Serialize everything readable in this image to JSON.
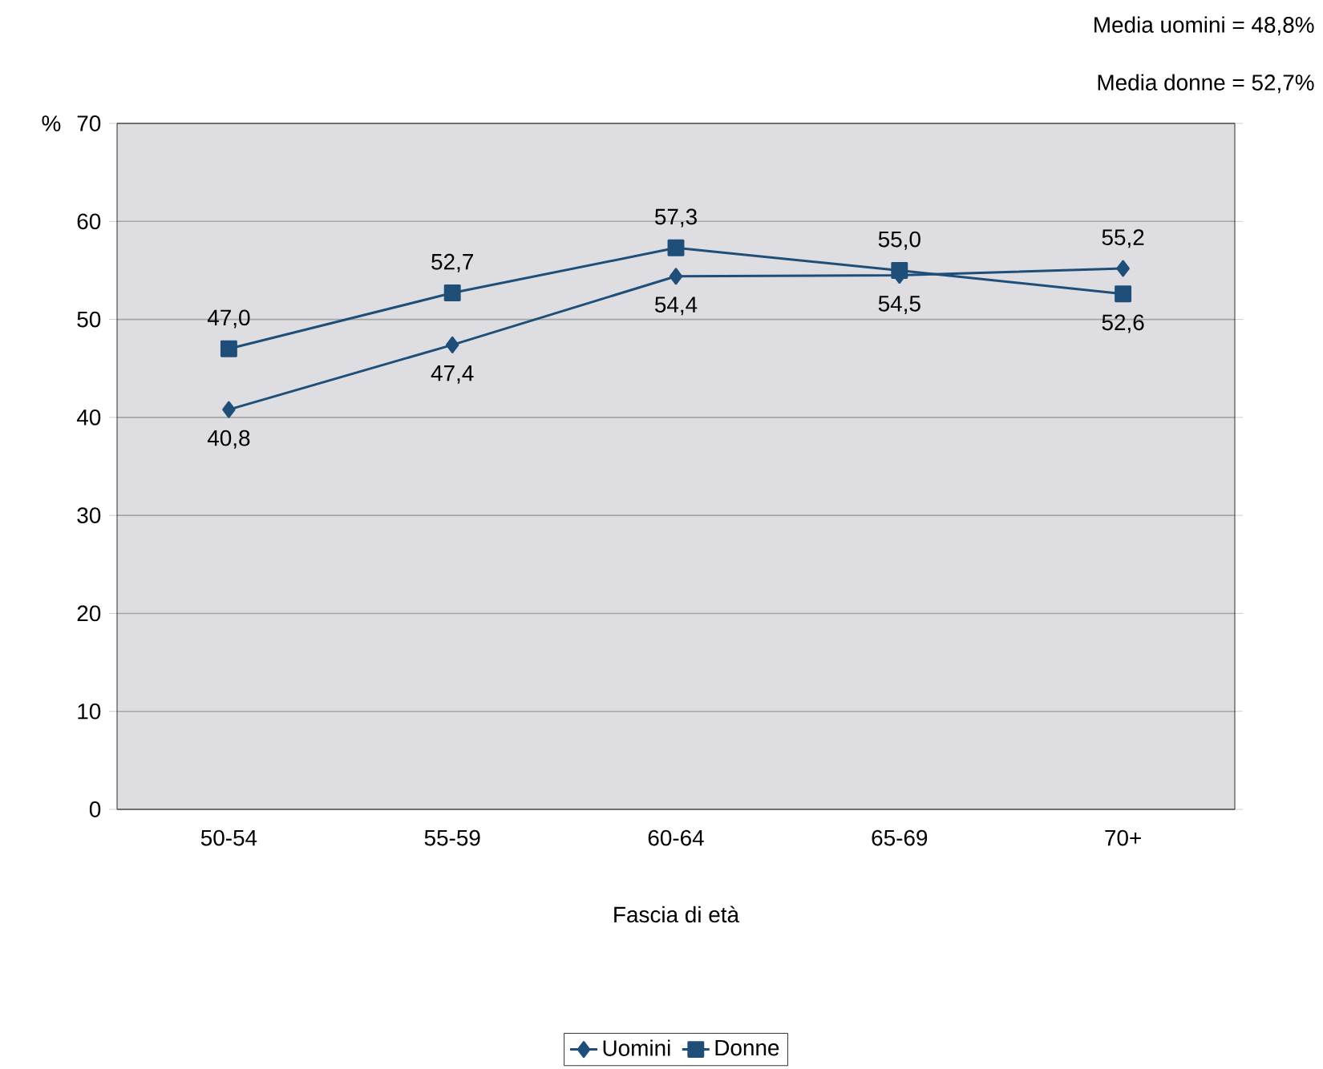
{
  "chart_data": {
    "type": "line",
    "categories": [
      "50-54",
      "55-59",
      "60-64",
      "65-69",
      "70+"
    ],
    "series": [
      {
        "name": "Uomini",
        "color": "#1f4e79",
        "marker": "diamond",
        "values": [
          40.8,
          47.4,
          54.4,
          54.5,
          55.2
        ],
        "value_labels": [
          "40,8",
          "47,4",
          "54,4",
          "54,5",
          "55,2"
        ]
      },
      {
        "name": "Donne",
        "color": "#1f4e79",
        "marker": "square",
        "values": [
          47.0,
          52.7,
          57.3,
          55.0,
          52.6
        ],
        "value_labels": [
          "47,0",
          "52,7",
          "57,3",
          "55,0",
          "52,6"
        ]
      }
    ],
    "ylim": [
      0,
      70
    ],
    "yticks": [
      0,
      10,
      20,
      30,
      40,
      50,
      60,
      70
    ],
    "xlabel": "Fascia di età",
    "ylabel": "%",
    "annotations": [
      "Media uomini = 48,8%",
      "Media donne  = 52,7%"
    ],
    "grid": "y",
    "legend": "bottom",
    "line_style": "solid"
  }
}
